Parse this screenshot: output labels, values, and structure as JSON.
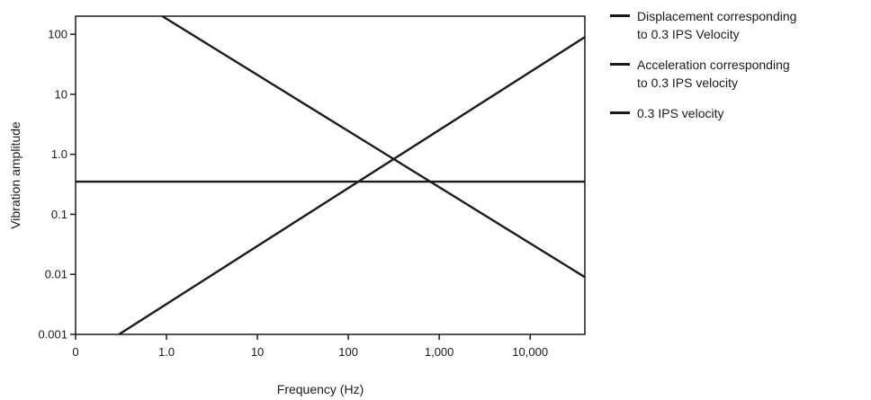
{
  "chart_data": {
    "type": "line",
    "title": "",
    "xlabel": "Frequency (Hz)",
    "ylabel": "Vibration amplitude",
    "x_scale": "log",
    "y_scale": "log",
    "xlim": [
      0.1,
      40000
    ],
    "ylim": [
      0.001,
      200
    ],
    "x_ticks": [
      {
        "value": 0.1,
        "label": "0"
      },
      {
        "value": 1,
        "label": "1.0"
      },
      {
        "value": 10,
        "label": "10"
      },
      {
        "value": 100,
        "label": "100"
      },
      {
        "value": 1000,
        "label": "1,000"
      },
      {
        "value": 10000,
        "label": "10,000"
      }
    ],
    "y_ticks": [
      {
        "value": 0.001,
        "label": "0.001"
      },
      {
        "value": 0.01,
        "label": "0.01"
      },
      {
        "value": 0.1,
        "label": "0.1"
      },
      {
        "value": 1,
        "label": "1.0"
      },
      {
        "value": 10,
        "label": "10"
      },
      {
        "value": 100,
        "label": "100"
      }
    ],
    "grid": false,
    "legend_position": "right",
    "series": [
      {
        "name": "Displacement corresponding\nto 0.3 IPS Velocity",
        "x": [
          0.9,
          40000
        ],
        "y": [
          200,
          0.009
        ]
      },
      {
        "name": "Acceleration corresponding\nto 0.3 IPS velocity",
        "x": [
          0.3,
          40000
        ],
        "y": [
          0.001,
          90
        ]
      },
      {
        "name": "0.3 IPS velocity",
        "x": [
          0.1,
          40000
        ],
        "y": [
          0.35,
          0.35
        ]
      }
    ],
    "line_color": "#1a1a1a"
  }
}
